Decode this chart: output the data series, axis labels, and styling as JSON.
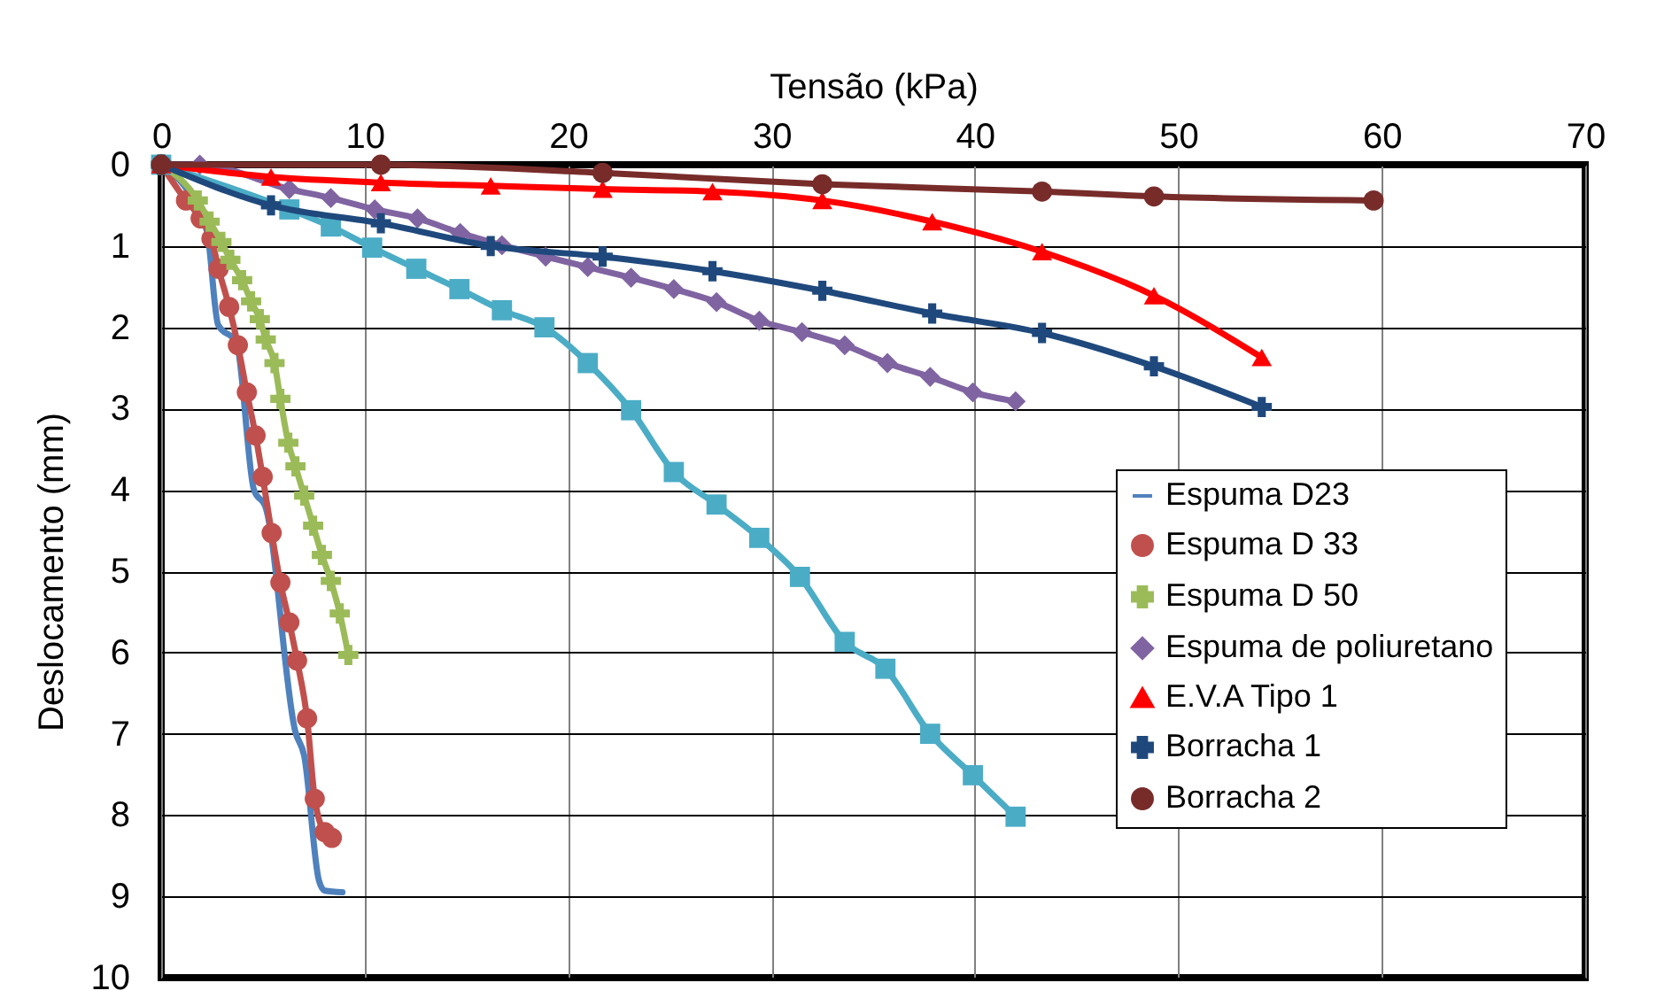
{
  "chart_data": {
    "type": "line",
    "xlabel": "Tensão (kPa)",
    "ylabel": "Deslocamento (mm)",
    "xlim": [
      0,
      70
    ],
    "xticks": [
      0,
      10,
      20,
      30,
      40,
      50,
      60,
      70
    ],
    "ylim": [
      10,
      0
    ],
    "yticks": [
      0,
      1,
      2,
      3,
      4,
      5,
      6,
      7,
      8,
      9,
      10
    ],
    "grid": true,
    "legend": "bottom right",
    "line_style": "solid",
    "series": [
      {
        "name": "Espuma D23",
        "color": "#4f81bd",
        "marker": "none",
        "x": [
          0,
          2.24,
          2.8,
          3.7,
          4.56,
          5.14,
          6.6,
          7.03,
          7.75,
          8.04,
          8.91
        ],
        "values": [
          0,
          0.81,
          1.97,
          2.19,
          4.0,
          4.22,
          6.98,
          7.27,
          8.8,
          8.93,
          8.95
        ]
      },
      {
        "name": "Espuma D 33",
        "color": "#c0504d",
        "marker": "circle",
        "x": [
          0,
          1.22,
          1.94,
          2.47,
          2.82,
          3.34,
          3.77,
          4.21,
          4.64,
          4.99,
          5.43,
          5.86,
          6.3,
          6.68,
          7.17,
          7.55,
          8.04,
          8.39
        ],
        "values": [
          0,
          0.44,
          0.66,
          0.91,
          1.28,
          1.75,
          2.22,
          2.8,
          3.33,
          3.84,
          4.53,
          5.14,
          5.63,
          6.1,
          6.81,
          7.8,
          8.21,
          8.28
        ]
      },
      {
        "name": "Espuma D 50",
        "color": "#9bbb59",
        "marker": "cross",
        "x": [
          0,
          1.8,
          2.38,
          2.96,
          3.4,
          3.98,
          4.42,
          4.85,
          5.14,
          5.57,
          5.86,
          6.25,
          6.6,
          7.03,
          7.47,
          7.9,
          8.34,
          8.78,
          9.2
        ],
        "values": [
          0,
          0.44,
          0.7,
          0.95,
          1.17,
          1.42,
          1.68,
          1.9,
          2.15,
          2.44,
          2.88,
          3.42,
          3.71,
          4.07,
          4.44,
          4.8,
          5.12,
          5.52,
          6.03
        ]
      },
      {
        "name": "Espuma de poliuretano",
        "color": "#8064a2",
        "marker": "diamond",
        "x": [
          0,
          1.9,
          6.3,
          8.34,
          10.5,
          12.6,
          14.7,
          16.75,
          18.9,
          20.97,
          23.1,
          25.2,
          27.3,
          29.4,
          31.5,
          33.6,
          35.7,
          37.8,
          39.9,
          42.0
        ],
        "values": [
          0,
          0,
          0.3,
          0.41,
          0.55,
          0.66,
          0.84,
          0.99,
          1.13,
          1.26,
          1.39,
          1.53,
          1.69,
          1.92,
          2.06,
          2.22,
          2.44,
          2.61,
          2.8,
          2.91
        ]
      },
      {
        "color": "#4bacc6",
        "marker": "square",
        "x": [
          0,
          6.3,
          8.34,
          10.37,
          12.54,
          14.66,
          16.75,
          18.84,
          20.97,
          23.1,
          25.2,
          27.3,
          29.4,
          31.4,
          33.6,
          35.6,
          37.8,
          39.9,
          42.0
        ],
        "values": [
          0,
          0.55,
          0.76,
          1.02,
          1.28,
          1.53,
          1.79,
          2.0,
          2.44,
          3.02,
          3.78,
          4.18,
          4.59,
          5.07,
          5.87,
          6.2,
          7.0,
          7.51,
          8.02
        ]
      },
      {
        "name": "E.V.A Tipo 1",
        "color": "#ff0000",
        "marker": "triangle",
        "x": [
          0,
          5.4,
          10.8,
          16.2,
          21.7,
          27.1,
          32.5,
          37.9,
          43.3,
          48.8,
          54.1
        ],
        "values": [
          0,
          0.15,
          0.22,
          0.26,
          0.3,
          0.33,
          0.44,
          0.7,
          1.07,
          1.61,
          2.37
        ]
      },
      {
        "name": "Borracha 1",
        "color": "#1f497d",
        "marker": "cross",
        "x": [
          0,
          5.4,
          10.8,
          16.2,
          21.7,
          27.1,
          32.5,
          37.9,
          43.3,
          48.8,
          54.1
        ],
        "values": [
          0,
          0.5,
          0.72,
          1.0,
          1.13,
          1.31,
          1.55,
          1.83,
          2.07,
          2.48,
          2.98
        ]
      },
      {
        "name": "Borracha 2",
        "color": "#772c2a",
        "marker": "circle",
        "x": [
          0,
          10.8,
          21.7,
          32.5,
          43.3,
          48.8,
          59.6
        ],
        "values": [
          0,
          0,
          0.1,
          0.24,
          0.33,
          0.39,
          0.44
        ]
      }
    ]
  }
}
